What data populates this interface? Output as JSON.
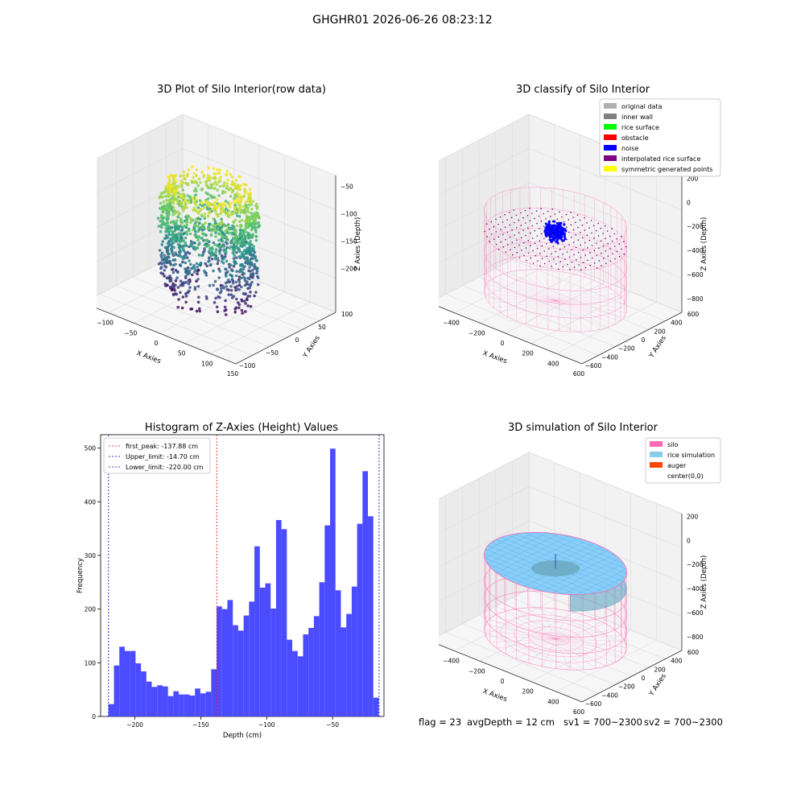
{
  "suptitle": "GHGHR01 2026-06-26 08:23:12",
  "status": {
    "flag": "flag = 23",
    "avg": "avgDepth = 12 cm",
    "sv1": "sv1 = 700~2300",
    "sv2": "sv2 = 700~2300"
  },
  "colors": {
    "hist_bar": "#4b4bff",
    "first_peak_line": "#ff0000",
    "limit_line": "#0000cc",
    "silo_wire": "#ff69b4",
    "rice": "#87cefa",
    "noise": "#0000ff"
  },
  "chart_data": [
    {
      "type": "scatter",
      "subtype": "3d",
      "title": "3D Plot of Silo Interior(row data)",
      "xlabel": "X Axies",
      "ylabel": "Y Axies",
      "zlabel": "Z Axies (Depth)",
      "xlim": [
        -150,
        150
      ],
      "ylim": [
        -120,
        120
      ],
      "zlim": [
        -240,
        -20
      ],
      "xticks": [
        "−150",
        "−100",
        "−50",
        "0",
        "50",
        "100",
        "150"
      ],
      "yticks": [
        "−100",
        "−50",
        "0",
        "50",
        "100"
      ],
      "zticks": [
        "−50",
        "−100",
        "−150",
        "−200"
      ],
      "colormap": "viridis",
      "description_points": "point cloud of silo interior, radius about 100, depth from -220 to -15"
    },
    {
      "type": "scatter",
      "subtype": "3d",
      "title": "3D classify of Silo Interior",
      "xlabel": "X Axies",
      "ylabel": "Y Axies",
      "zlabel": "Z Axies (Depth)",
      "xticks": [
        "−600",
        "−400",
        "−200",
        "0",
        "200",
        "400",
        "600"
      ],
      "yticks": [
        "−600",
        "−400",
        "−200",
        "0",
        "200",
        "400",
        "600"
      ],
      "zticks": [
        "200",
        "0",
        "−200",
        "−400",
        "−600",
        "−800"
      ],
      "legend_position": "upper right",
      "legend": [
        {
          "label": "original data",
          "color": "#b0b0b0"
        },
        {
          "label": "inner wall",
          "color": "#808080"
        },
        {
          "label": "rice surface",
          "color": "#00ff00"
        },
        {
          "label": "obstacle",
          "color": "#ff0000"
        },
        {
          "label": "noise",
          "color": "#0000ff"
        },
        {
          "label": "interpolated rice surface",
          "color": "#800080"
        },
        {
          "label": "symmetric generated points",
          "color": "#ffff00"
        }
      ]
    },
    {
      "type": "bar",
      "subtype": "histogram",
      "title": "Histogram of Z-Axies (Height) Values",
      "xlabel": "Depth (cm)",
      "ylabel": "Frequency",
      "xlim": [
        -226,
        -11
      ],
      "ylim": [
        0,
        525
      ],
      "xticks": [
        -200,
        -150,
        -100,
        -50
      ],
      "yticks": [
        0,
        100,
        200,
        300,
        400,
        500
      ],
      "bin_start": -220,
      "bin_width": 4.1,
      "values": [
        23,
        95,
        130,
        122,
        122,
        99,
        84,
        65,
        55,
        58,
        56,
        38,
        47,
        41,
        41,
        39,
        52,
        43,
        46,
        88,
        205,
        200,
        217,
        170,
        160,
        188,
        214,
        317,
        240,
        248,
        201,
        366,
        349,
        143,
        122,
        112,
        153,
        165,
        187,
        250,
        356,
        499,
        235,
        166,
        191,
        242,
        359,
        457,
        373,
        35
      ],
      "vlines": [
        {
          "label": "first_peak: -137.88 cm",
          "x": -137.88,
          "color": "#ff0000"
        },
        {
          "label": "Upper_limit: -14.70 cm",
          "x": -14.7,
          "color": "#0000cc"
        },
        {
          "label": "Lower_limit: -220.00 cm",
          "x": -220.0,
          "color": "#0000cc"
        }
      ],
      "legend_position": "upper left"
    },
    {
      "type": "surface",
      "subtype": "3d",
      "title": "3D simulation of Silo Interior",
      "xlabel": "X Axies",
      "ylabel": "Y Axies",
      "zlabel": "Z Axies (Depth)",
      "xticks": [
        "−600",
        "−400",
        "−200",
        "0",
        "200",
        "400",
        "600"
      ],
      "yticks": [
        "−600",
        "−400",
        "−200",
        "0",
        "200",
        "400",
        "600"
      ],
      "zticks": [
        "200",
        "0",
        "−200",
        "−400",
        "−600",
        "−800"
      ],
      "legend_position": "upper right",
      "legend": [
        {
          "label": "silo",
          "color": "#ff69b4"
        },
        {
          "label": "rice simulation",
          "color": "#87ceeb"
        },
        {
          "label": "auger",
          "color": "#ff4500"
        },
        {
          "label": "center(0,0)",
          "color": ""
        }
      ]
    }
  ]
}
